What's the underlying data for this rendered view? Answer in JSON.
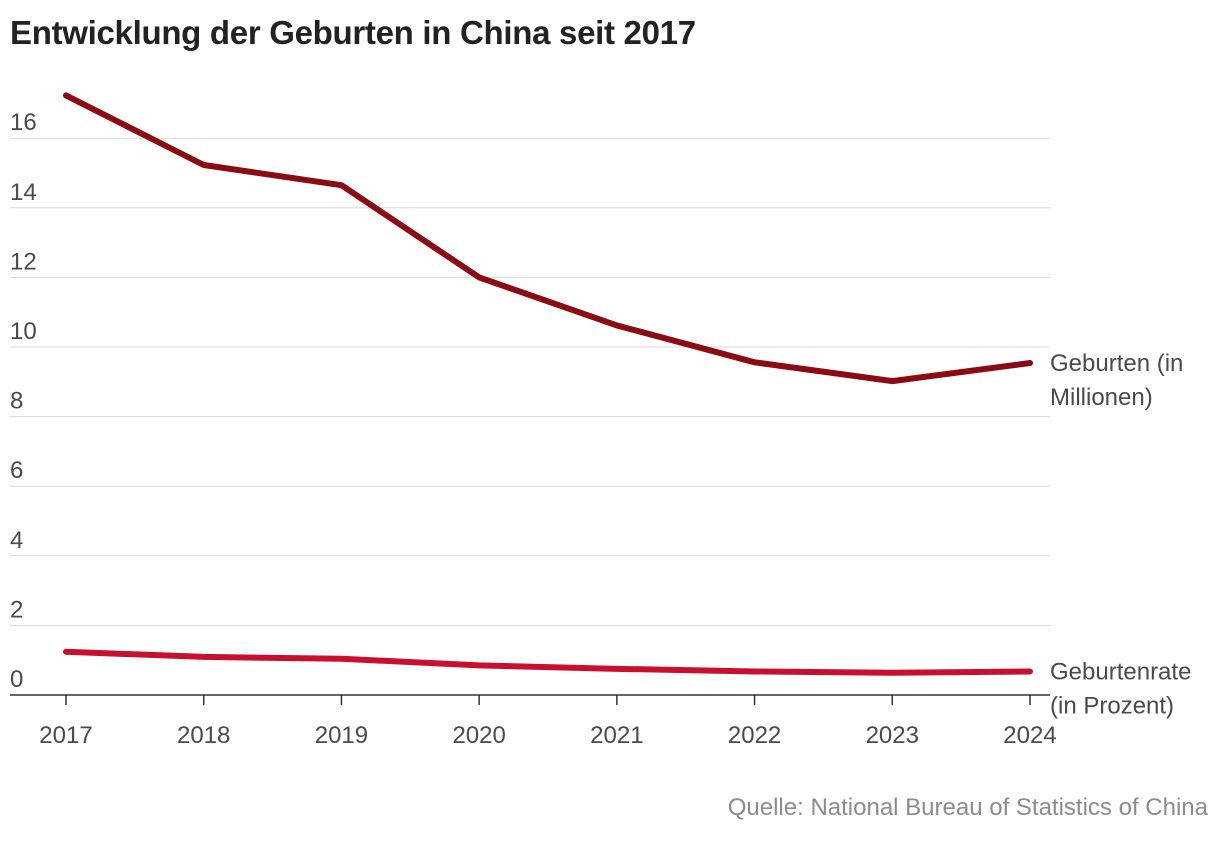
{
  "title": "Entwicklung der Geburten in China seit 2017",
  "source": "Quelle: National Bureau of Statistics of China",
  "colors": {
    "births": "#8b0a14",
    "rate": "#c8102e",
    "grid": "#d9d9d9",
    "axis": "#333333",
    "text": "#4a4a4a",
    "source": "#8c8c8c"
  },
  "chart_data": {
    "type": "line",
    "title": "Entwicklung der Geburten in China seit 2017",
    "xlabel": "",
    "ylabel": "",
    "x": [
      "2017",
      "2018",
      "2019",
      "2020",
      "2021",
      "2022",
      "2023",
      "2024"
    ],
    "ylim": [
      0,
      17.5
    ],
    "yticks": [
      0,
      2,
      4,
      6,
      8,
      10,
      12,
      14,
      16
    ],
    "ytick_labels": [
      "0",
      "2",
      "4",
      "6",
      "8",
      "10",
      "12",
      "14",
      "16"
    ],
    "grid": true,
    "series": [
      {
        "name": "Geburten (in Millionen)",
        "label_lines": [
          "Geburten (in",
          "Millionen)"
        ],
        "color": "#8b0a14",
        "values": [
          17.23,
          15.23,
          14.65,
          12.0,
          10.62,
          9.56,
          9.02,
          9.54
        ]
      },
      {
        "name": "Geburtenrate (in Prozent)",
        "label_lines": [
          "Geburtenrate",
          "(in Prozent)"
        ],
        "color": "#c8102e",
        "values": [
          1.243,
          1.094,
          1.041,
          0.852,
          0.752,
          0.677,
          0.639,
          0.677
        ]
      }
    ]
  }
}
